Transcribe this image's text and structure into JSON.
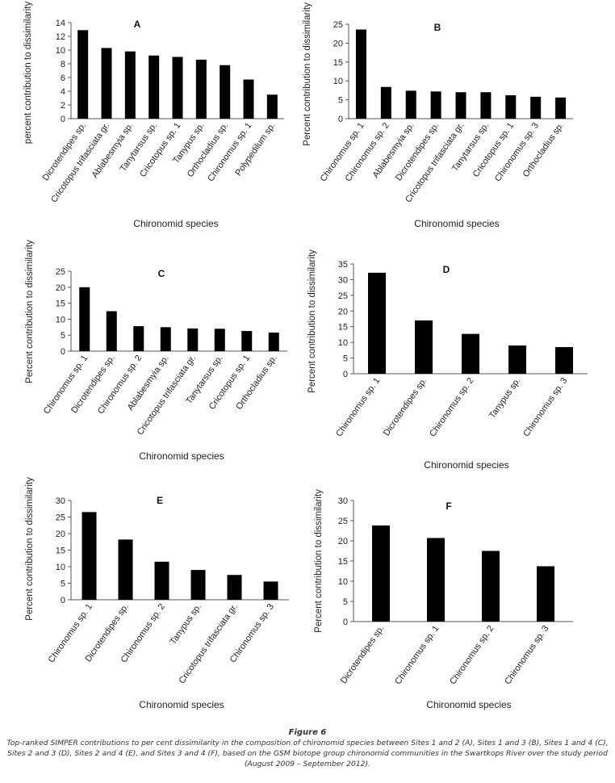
{
  "chart_data": [
    {
      "type": "bar",
      "panel_label": "A",
      "ylabel": "percent contribution to dissimilarity",
      "xlabel": "Chironomid species",
      "ylim": [
        0,
        14
      ],
      "yticks": [
        0,
        2,
        4,
        6,
        8,
        10,
        12,
        14
      ],
      "categories": [
        "Dicrotendipes sp.",
        "Cricotopus trifasciata gr.",
        "Ablabesmyia sp.",
        "Tanytarsus sp.",
        "Cricotopus sp. 1",
        "Tanypus sp.",
        "Orthocladius sp.",
        "Chironomus sp. 1",
        "Polypedilum sp."
      ],
      "values": [
        12.9,
        10.3,
        9.8,
        9.2,
        9.0,
        8.6,
        7.8,
        5.7,
        3.5
      ]
    },
    {
      "type": "bar",
      "panel_label": "B",
      "ylabel": "Percent contribution to dissimilarity",
      "xlabel": "Chironomid species",
      "ylim": [
        0,
        25
      ],
      "yticks": [
        0,
        5,
        10,
        15,
        20,
        25
      ],
      "categories": [
        "Chironomus sp. 1",
        "Chironomus sp. 2",
        "Ablabesmyia sp.",
        "Dicrotendipes sp.",
        "Cricotopus trifasciata gr.",
        "Tanytarsus sp.",
        "Cricotopus sp. 1",
        "Chironomus sp. 3",
        "Orthocladius sp."
      ],
      "values": [
        23.6,
        8.4,
        7.4,
        7.2,
        7.0,
        7.0,
        6.2,
        5.8,
        5.6
      ]
    },
    {
      "type": "bar",
      "panel_label": "C",
      "ylabel": "Percent contribution to dissimilarity",
      "xlabel": "Chironomid species",
      "ylim": [
        0,
        25
      ],
      "yticks": [
        0,
        5,
        10,
        15,
        20,
        25
      ],
      "categories": [
        "Chironomus sp. 1",
        "Dicrotendipes sp.",
        "Chironomus sp. 2",
        "Ablabesmyia sp.",
        "Cricotopus trifasciata gr.",
        "Tanytarsus sp.",
        "Cricotopus sp. 1",
        "Orthocladius sp."
      ],
      "values": [
        20.0,
        12.5,
        7.8,
        7.5,
        7.1,
        7.0,
        6.3,
        5.8
      ]
    },
    {
      "type": "bar",
      "panel_label": "D",
      "ylabel": "Percent contribution to dissimilarity",
      "xlabel": "Chironomid species",
      "ylim": [
        0,
        35
      ],
      "yticks": [
        0,
        5,
        10,
        15,
        20,
        25,
        30,
        35
      ],
      "categories": [
        "Chironomus sp. 1",
        "Dicrotendipes sp.",
        "Chironomus sp. 2",
        "Tanypus sp.",
        "Chironomus sp. 3"
      ],
      "values": [
        32.2,
        17.0,
        12.7,
        9.0,
        8.5
      ]
    },
    {
      "type": "bar",
      "panel_label": "E",
      "ylabel": "Percent contribution to dissimilarity",
      "xlabel": "Chironomid species",
      "ylim": [
        0,
        30
      ],
      "yticks": [
        0,
        5,
        10,
        15,
        20,
        25,
        30
      ],
      "categories": [
        "Chironomus sp. 1",
        "Dicrotendipes sp.",
        "Chironomus sp. 2",
        "Tanypus sp.",
        "Cricotopus trifasciata gr.",
        "Chironomus sp. 3"
      ],
      "values": [
        26.5,
        18.2,
        11.5,
        9.0,
        7.5,
        5.5
      ]
    },
    {
      "type": "bar",
      "panel_label": "F",
      "ylabel": "Percent contribution to dissimilarity",
      "xlabel": "Chironomid species",
      "ylim": [
        0,
        30
      ],
      "yticks": [
        0,
        5,
        10,
        15,
        20,
        25,
        30
      ],
      "categories": [
        "Dicrotendipes sp.",
        "Chironomus sp. 1",
        "Chironomus sp. 2",
        "Chironomus sp. 3"
      ],
      "values": [
        23.8,
        20.7,
        17.5,
        13.7
      ]
    }
  ],
  "caption": {
    "figure": "Figure 6",
    "text": "Top-ranked SIMPER contributions to per cent dissimilarity in the composition of chironomid species between Sites 1 and 2 (A), Sites 1 and 3 (B), Sites 1 and 4 (C), Sites 2 and 3 (D), Sites 2 and 4 (E), and Sites 3 and 4 (F), based on the GSM biotope group chironomid communities in the Swartkops River over the study period (August 2009 – September 2012)."
  }
}
